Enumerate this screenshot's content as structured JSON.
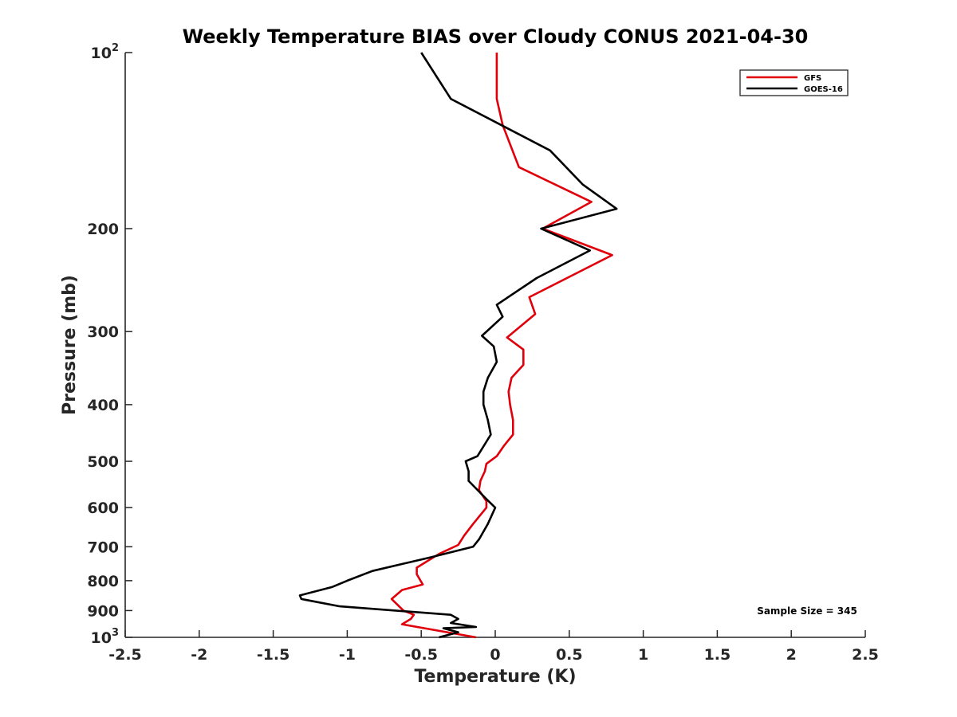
{
  "chart_data": {
    "type": "line",
    "title": "Weekly Temperature BIAS over Cloudy CONUS 2021-04-30",
    "xlabel": "Temperature (K)",
    "ylabel": "Pressure (mb)",
    "xlim": [
      -2.5,
      2.5
    ],
    "ylim": [
      100,
      1000
    ],
    "y_scale": "log",
    "y_reversed": true,
    "grid": false,
    "legend_position": "top-right",
    "x_ticks": [
      "-2.5",
      "-2",
      "-1.5",
      "-1",
      "-0.5",
      "0",
      "0.5",
      "1",
      "1.5",
      "2",
      "2.5"
    ],
    "y_ticks": [
      {
        "value": 100,
        "base": "10",
        "exp": "2"
      },
      {
        "value": 200,
        "label": "200"
      },
      {
        "value": 300,
        "label": "300"
      },
      {
        "value": 400,
        "label": "400"
      },
      {
        "value": 500,
        "label": "500"
      },
      {
        "value": 600,
        "label": "600"
      },
      {
        "value": 700,
        "label": "700"
      },
      {
        "value": 800,
        "label": "800"
      },
      {
        "value": 900,
        "label": "900"
      },
      {
        "value": 1000,
        "base": "10",
        "exp": "3"
      }
    ],
    "annotation": "Sample Size = 345",
    "series": [
      {
        "name": "GFS",
        "color": "#e0000b",
        "points": [
          [
            0.01,
            100
          ],
          [
            0.01,
            120
          ],
          [
            0.05,
            133
          ],
          [
            0.16,
            157
          ],
          [
            0.65,
            180
          ],
          [
            0.32,
            200
          ],
          [
            0.79,
            222
          ],
          [
            0.23,
            262
          ],
          [
            0.27,
            280
          ],
          [
            0.08,
            307
          ],
          [
            0.19,
            322
          ],
          [
            0.19,
            342
          ],
          [
            0.11,
            360
          ],
          [
            0.09,
            380
          ],
          [
            0.1,
            400
          ],
          [
            0.12,
            425
          ],
          [
            0.12,
            450
          ],
          [
            0.06,
            470
          ],
          [
            0.01,
            490
          ],
          [
            -0.06,
            505
          ],
          [
            -0.07,
            520
          ],
          [
            -0.1,
            540
          ],
          [
            -0.11,
            560
          ],
          [
            -0.06,
            585
          ],
          [
            -0.06,
            600
          ],
          [
            -0.15,
            640
          ],
          [
            -0.21,
            670
          ],
          [
            -0.25,
            695
          ],
          [
            -0.38,
            720
          ],
          [
            -0.53,
            760
          ],
          [
            -0.53,
            780
          ],
          [
            -0.49,
            812
          ],
          [
            -0.63,
            830
          ],
          [
            -0.7,
            860
          ],
          [
            -0.62,
            900
          ],
          [
            -0.55,
            915
          ],
          [
            -0.57,
            930
          ],
          [
            -0.63,
            950
          ],
          [
            -0.13,
            1000
          ]
        ]
      },
      {
        "name": "GOES-16",
        "color": "#000000",
        "points": [
          [
            -0.5,
            100
          ],
          [
            -0.3,
            120
          ],
          [
            0.37,
            147
          ],
          [
            0.59,
            168
          ],
          [
            0.82,
            185
          ],
          [
            0.31,
            200
          ],
          [
            0.64,
            218
          ],
          [
            0.28,
            243
          ],
          [
            0.01,
            270
          ],
          [
            0.05,
            283
          ],
          [
            -0.09,
            305
          ],
          [
            -0.01,
            318
          ],
          [
            0.01,
            338
          ],
          [
            -0.05,
            360
          ],
          [
            -0.08,
            380
          ],
          [
            -0.08,
            400
          ],
          [
            -0.05,
            425
          ],
          [
            -0.03,
            450
          ],
          [
            -0.12,
            490
          ],
          [
            -0.2,
            500
          ],
          [
            -0.18,
            520
          ],
          [
            -0.18,
            540
          ],
          [
            -0.06,
            580
          ],
          [
            0.0,
            600
          ],
          [
            -0.05,
            640
          ],
          [
            -0.11,
            680
          ],
          [
            -0.15,
            700
          ],
          [
            -0.44,
            730
          ],
          [
            -0.83,
            770
          ],
          [
            -1.0,
            800
          ],
          [
            -1.1,
            820
          ],
          [
            -1.32,
            848
          ],
          [
            -1.31,
            860
          ],
          [
            -1.05,
            885
          ],
          [
            -0.3,
            915
          ],
          [
            -0.25,
            930
          ],
          [
            -0.3,
            945
          ],
          [
            -0.13,
            960
          ],
          [
            -0.35,
            965
          ],
          [
            -0.25,
            980
          ],
          [
            -0.38,
            1000
          ]
        ]
      }
    ]
  }
}
